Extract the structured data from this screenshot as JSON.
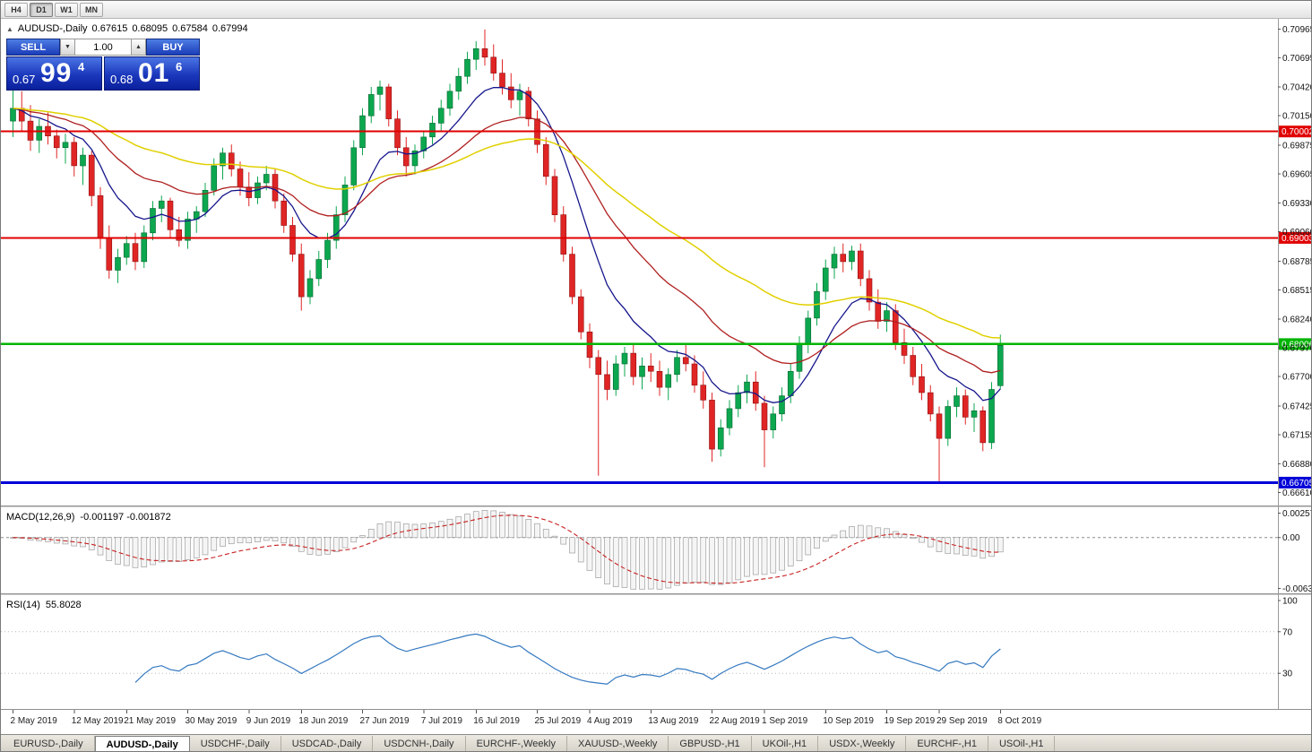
{
  "toolbar": {
    "timeframes": [
      {
        "label": "H4",
        "active": false
      },
      {
        "label": "D1",
        "active": true
      },
      {
        "label": "W1",
        "active": false
      },
      {
        "label": "MN",
        "active": false
      }
    ]
  },
  "chart_header": {
    "collapse_icon": "▲",
    "symbol_period": "AUDUSD-,Daily",
    "open": "0.67615",
    "high": "0.68095",
    "low": "0.67584",
    "close": "0.67994"
  },
  "trade_panel": {
    "sell_label": "SELL",
    "buy_label": "BUY",
    "volume": "1.00",
    "sell_price": {
      "prefix": "0.67",
      "big": "99",
      "sup": "4"
    },
    "buy_price": {
      "prefix": "0.68",
      "big": "01",
      "sup": "6"
    }
  },
  "macd_panel": {
    "label": "MACD(12,26,9)",
    "values": "-0.001197 -0.001872"
  },
  "rsi_panel": {
    "label": "RSI(14)",
    "value": "55.8028"
  },
  "tabs": [
    {
      "label": "EURUSD-,Daily",
      "active": false
    },
    {
      "label": "AUDUSD-,Daily",
      "active": true
    },
    {
      "label": "USDCHF-,Daily",
      "active": false
    },
    {
      "label": "USDCAD-,Daily",
      "active": false
    },
    {
      "label": "USDCNH-,Daily",
      "active": false
    },
    {
      "label": "EURCHF-,Weekly",
      "active": false
    },
    {
      "label": "XAUUSD-,Weekly",
      "active": false
    },
    {
      "label": "GBPUSD-,H1",
      "active": false
    },
    {
      "label": "UKOil-,H1",
      "active": false
    },
    {
      "label": "USDX-,Weekly",
      "active": false
    },
    {
      "label": "EURCHF-,H1",
      "active": false
    },
    {
      "label": "USOil-,H1",
      "active": false
    }
  ],
  "chart_data": {
    "type": "candlestick",
    "symbol": "AUDUSD-",
    "period": "Daily",
    "y_range": [
      0.6649,
      0.7106
    ],
    "price_axis_ticks": [
      "0.70965",
      "0.70695",
      "0.70420",
      "0.70150",
      "0.69875",
      "0.69605",
      "0.69330",
      "0.69060",
      "0.68785",
      "0.68515",
      "0.68240",
      "0.67970",
      "0.67700",
      "0.67425",
      "0.67155",
      "0.66880",
      "0.66610"
    ],
    "x_labels": [
      "2 May 2019",
      "12 May 2019",
      "21 May 2019",
      "30 May 2019",
      "9 Jun 2019",
      "18 Jun 2019",
      "27 Jun 2019",
      "7 Jul 2019",
      "16 Jul 2019",
      "25 Jul 2019",
      "4 Aug 2019",
      "13 Aug 2019",
      "22 Aug 2019",
      "1 Sep 2019",
      "10 Sep 2019",
      "19 Sep 2019",
      "29 Sep 2019",
      "8 Oct 2019"
    ],
    "levels": [
      {
        "label": "0.70002",
        "value": 0.70002,
        "color": "#e00000",
        "width": 2
      },
      {
        "label": "0.69003",
        "value": 0.69003,
        "color": "#e00000",
        "width": 2
      },
      {
        "label": "0.68006",
        "value": 0.68006,
        "color": "#00b400",
        "width": 2.5
      },
      {
        "label": "0.66705",
        "value": 0.66705,
        "color": "#0000d8",
        "width": 3
      }
    ],
    "overlays": [
      {
        "name": "ma-fast",
        "type": "ema",
        "period": 10,
        "color": "#16168c",
        "width": 1.3
      },
      {
        "name": "ma-mid",
        "type": "ema",
        "period": 24,
        "color": "#b02020",
        "width": 1.3
      },
      {
        "name": "ma-slow",
        "type": "ema",
        "period": 50,
        "color": "#e0d000",
        "width": 1.5
      }
    ],
    "macd": {
      "fast": 12,
      "slow": 26,
      "signal": 9,
      "display": "-0.001197 -0.001872",
      "axis_ticks": [
        "0.002574",
        "0.00",
        "-0.006326"
      ],
      "signal_color": "#c82020",
      "bar_fill": "#f5f5f5",
      "bar_stroke": "#9e9e9e"
    },
    "rsi": {
      "period": 14,
      "display": "55.8028",
      "axis_ticks": [
        "100",
        "70",
        "30"
      ],
      "levels": [
        70,
        30
      ],
      "color": "#3579c0"
    },
    "colors": {
      "bull": "#0ca74f",
      "bull_border": "#06662f",
      "bear": "#e02525",
      "bear_border": "#8f0e0e",
      "divider": "#cfcfcf",
      "axis_text": "#111111"
    },
    "ohlc": [
      [
        0.701,
        0.7046,
        0.6995,
        0.7022
      ],
      [
        0.7022,
        0.7038,
        0.7,
        0.701
      ],
      [
        0.701,
        0.7025,
        0.6982,
        0.6992
      ],
      [
        0.6992,
        0.7012,
        0.698,
        0.7005
      ],
      [
        0.7005,
        0.7018,
        0.6988,
        0.6996
      ],
      [
        0.6996,
        0.7002,
        0.6975,
        0.6985
      ],
      [
        0.6985,
        0.6998,
        0.697,
        0.699
      ],
      [
        0.699,
        0.6995,
        0.6958,
        0.6968
      ],
      [
        0.6968,
        0.6985,
        0.695,
        0.6978
      ],
      [
        0.6978,
        0.6982,
        0.693,
        0.694
      ],
      [
        0.694,
        0.6948,
        0.689,
        0.69
      ],
      [
        0.69,
        0.6912,
        0.6862,
        0.687
      ],
      [
        0.687,
        0.689,
        0.6858,
        0.6882
      ],
      [
        0.6882,
        0.6902,
        0.6875,
        0.6895
      ],
      [
        0.6895,
        0.6905,
        0.687,
        0.6878
      ],
      [
        0.6878,
        0.6912,
        0.6872,
        0.6905
      ],
      [
        0.6905,
        0.6935,
        0.6898,
        0.6928
      ],
      [
        0.6928,
        0.694,
        0.6915,
        0.6935
      ],
      [
        0.6935,
        0.6938,
        0.69,
        0.6908
      ],
      [
        0.6908,
        0.692,
        0.6892,
        0.6898
      ],
      [
        0.6898,
        0.6925,
        0.689,
        0.6918
      ],
      [
        0.6918,
        0.693,
        0.6905,
        0.6925
      ],
      [
        0.6925,
        0.6952,
        0.692,
        0.6945
      ],
      [
        0.6945,
        0.6975,
        0.694,
        0.6968
      ],
      [
        0.6968,
        0.6985,
        0.6955,
        0.698
      ],
      [
        0.698,
        0.6988,
        0.6958,
        0.6965
      ],
      [
        0.6965,
        0.6972,
        0.694,
        0.6948
      ],
      [
        0.6948,
        0.6962,
        0.693,
        0.6938
      ],
      [
        0.6938,
        0.6958,
        0.6932,
        0.6952
      ],
      [
        0.6952,
        0.6968,
        0.6945,
        0.696
      ],
      [
        0.696,
        0.6965,
        0.6928,
        0.6935
      ],
      [
        0.6935,
        0.6942,
        0.6905,
        0.6912
      ],
      [
        0.6912,
        0.692,
        0.6878,
        0.6885
      ],
      [
        0.6885,
        0.6895,
        0.6832,
        0.6845
      ],
      [
        0.6845,
        0.687,
        0.6838,
        0.6862
      ],
      [
        0.6862,
        0.6888,
        0.6855,
        0.688
      ],
      [
        0.688,
        0.6905,
        0.6872,
        0.6898
      ],
      [
        0.6898,
        0.693,
        0.689,
        0.6922
      ],
      [
        0.6922,
        0.6958,
        0.6915,
        0.695
      ],
      [
        0.695,
        0.6992,
        0.6945,
        0.6985
      ],
      [
        0.6985,
        0.7022,
        0.6978,
        0.7015
      ],
      [
        0.7015,
        0.7042,
        0.7008,
        0.7035
      ],
      [
        0.7035,
        0.7048,
        0.702,
        0.7042
      ],
      [
        0.7042,
        0.7045,
        0.7005,
        0.7012
      ],
      [
        0.7012,
        0.702,
        0.6978,
        0.6985
      ],
      [
        0.6985,
        0.6995,
        0.6958,
        0.6968
      ],
      [
        0.6968,
        0.6988,
        0.696,
        0.6982
      ],
      [
        0.6982,
        0.7,
        0.6975,
        0.6995
      ],
      [
        0.6995,
        0.7015,
        0.6988,
        0.7008
      ],
      [
        0.7008,
        0.703,
        0.7,
        0.7022
      ],
      [
        0.7022,
        0.7045,
        0.7015,
        0.7038
      ],
      [
        0.7038,
        0.706,
        0.703,
        0.7052
      ],
      [
        0.7052,
        0.7075,
        0.7045,
        0.7068
      ],
      [
        0.7068,
        0.7085,
        0.7058,
        0.7078
      ],
      [
        0.7078,
        0.7096,
        0.7062,
        0.707
      ],
      [
        0.707,
        0.7082,
        0.7048,
        0.7055
      ],
      [
        0.7055,
        0.7068,
        0.7035,
        0.7042
      ],
      [
        0.7042,
        0.7055,
        0.7022,
        0.703
      ],
      [
        0.703,
        0.7045,
        0.7015,
        0.7038
      ],
      [
        0.7038,
        0.7042,
        0.7005,
        0.7012
      ],
      [
        0.7012,
        0.702,
        0.698,
        0.6988
      ],
      [
        0.6988,
        0.6995,
        0.695,
        0.6958
      ],
      [
        0.6958,
        0.6965,
        0.6915,
        0.6922
      ],
      [
        0.6922,
        0.693,
        0.6878,
        0.6885
      ],
      [
        0.6885,
        0.6892,
        0.6838,
        0.6845
      ],
      [
        0.6845,
        0.6852,
        0.6805,
        0.6812
      ],
      [
        0.6812,
        0.682,
        0.6778,
        0.6788
      ],
      [
        0.6788,
        0.6795,
        0.6677,
        0.6772
      ],
      [
        0.6772,
        0.6785,
        0.6748,
        0.6758
      ],
      [
        0.6758,
        0.679,
        0.6752,
        0.6782
      ],
      [
        0.6782,
        0.6798,
        0.677,
        0.6792
      ],
      [
        0.6792,
        0.68,
        0.6762,
        0.677
      ],
      [
        0.677,
        0.6788,
        0.6758,
        0.678
      ],
      [
        0.678,
        0.6792,
        0.6765,
        0.6775
      ],
      [
        0.6775,
        0.6785,
        0.6752,
        0.676
      ],
      [
        0.676,
        0.6778,
        0.6748,
        0.6772
      ],
      [
        0.6772,
        0.6795,
        0.6765,
        0.6788
      ],
      [
        0.6788,
        0.68,
        0.6775,
        0.6782
      ],
      [
        0.6782,
        0.679,
        0.6755,
        0.6762
      ],
      [
        0.6762,
        0.6775,
        0.674,
        0.6748
      ],
      [
        0.6748,
        0.6755,
        0.669,
        0.6702
      ],
      [
        0.6702,
        0.673,
        0.6695,
        0.6722
      ],
      [
        0.6722,
        0.6748,
        0.6715,
        0.674
      ],
      [
        0.674,
        0.6762,
        0.6732,
        0.6755
      ],
      [
        0.6755,
        0.6772,
        0.6745,
        0.6765
      ],
      [
        0.6765,
        0.6775,
        0.6738,
        0.6745
      ],
      [
        0.6745,
        0.6752,
        0.6685,
        0.672
      ],
      [
        0.672,
        0.6742,
        0.6712,
        0.6735
      ],
      [
        0.6735,
        0.676,
        0.6728,
        0.6752
      ],
      [
        0.6752,
        0.6782,
        0.6745,
        0.6775
      ],
      [
        0.6775,
        0.6808,
        0.6768,
        0.68
      ],
      [
        0.68,
        0.6832,
        0.6792,
        0.6825
      ],
      [
        0.6825,
        0.6858,
        0.6818,
        0.685
      ],
      [
        0.685,
        0.688,
        0.6842,
        0.6872
      ],
      [
        0.6872,
        0.6892,
        0.6862,
        0.6885
      ],
      [
        0.6885,
        0.6895,
        0.6868,
        0.6878
      ],
      [
        0.6878,
        0.6893,
        0.687,
        0.6888
      ],
      [
        0.6888,
        0.6895,
        0.6855,
        0.6862
      ],
      [
        0.6862,
        0.687,
        0.6832,
        0.684
      ],
      [
        0.684,
        0.6852,
        0.6815,
        0.6822
      ],
      [
        0.6822,
        0.684,
        0.6812,
        0.6832
      ],
      [
        0.6832,
        0.6838,
        0.6795,
        0.6802
      ],
      [
        0.6802,
        0.6815,
        0.6782,
        0.679
      ],
      [
        0.679,
        0.6798,
        0.6762,
        0.677
      ],
      [
        0.677,
        0.6782,
        0.6748,
        0.6755
      ],
      [
        0.6755,
        0.6762,
        0.6728,
        0.6735
      ],
      [
        0.6735,
        0.6742,
        0.667,
        0.6712
      ],
      [
        0.6712,
        0.6748,
        0.6705,
        0.6742
      ],
      [
        0.6742,
        0.676,
        0.6732,
        0.6752
      ],
      [
        0.6752,
        0.6758,
        0.6725,
        0.6732
      ],
      [
        0.6732,
        0.6745,
        0.6718,
        0.6738
      ],
      [
        0.6738,
        0.6742,
        0.67,
        0.6708
      ],
      [
        0.6708,
        0.6765,
        0.6702,
        0.6758
      ],
      [
        0.67615,
        0.68095,
        0.67584,
        0.67994
      ]
    ]
  }
}
